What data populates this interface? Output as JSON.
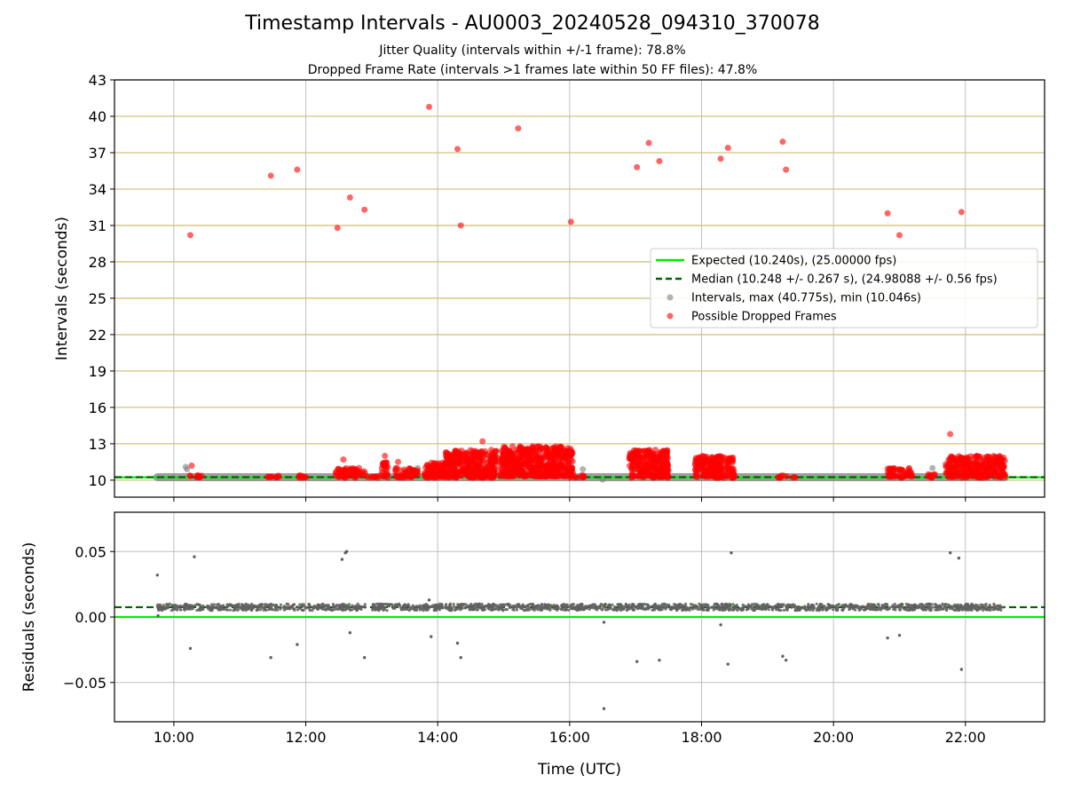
{
  "chart_data": [
    {
      "type": "scatter",
      "title": "Timestamp Intervals - AU0003_20240528_094310_370078",
      "subtitle_lines": [
        "Jitter Quality (intervals within +/-1 frame): 78.8%",
        "Dropped Frame Rate (intervals >1 frames late within 50 FF files): 47.8%"
      ],
      "xlabel": "",
      "ylabel": "Intervals (seconds)",
      "xlim": [
        9.1,
        23.2
      ],
      "ylim": [
        8.6,
        43
      ],
      "yticks": [
        10,
        13,
        16,
        19,
        22,
        25,
        28,
        31,
        34,
        37,
        40,
        43
      ],
      "xticks": [
        10,
        12,
        14,
        16,
        18,
        20,
        22
      ],
      "xtick_labels": [
        "10:00",
        "12:00",
        "14:00",
        "16:00",
        "18:00",
        "20:00",
        "22:00"
      ],
      "grid": true,
      "legend_position": "center-right",
      "reference_lines": [
        {
          "name": "Expected (10.240s), (25.00000 fps)",
          "y": 10.24,
          "style": "solid",
          "color": "#00ee00"
        },
        {
          "name": "Median (10.248 +/- 0.267 s), (24.98088 +/- 0.56 fps)",
          "y": 10.248,
          "style": "dashed",
          "color": "#006400"
        }
      ],
      "series": [
        {
          "name": "Intervals, max (40.775s), min (10.046s)",
          "color": "#808080",
          "baseline_segments": [
            [
              9.75,
              22.6
            ]
          ],
          "baseline_y": 10.248,
          "points": [
            [
              10.18,
              11.1
            ],
            [
              10.2,
              10.9
            ],
            [
              13.7,
              11.0
            ],
            [
              16.2,
              10.9
            ],
            [
              16.5,
              10.05
            ],
            [
              17.0,
              11.0
            ],
            [
              17.9,
              11.5
            ],
            [
              18.3,
              10.9
            ],
            [
              21.5,
              11.0
            ],
            [
              21.7,
              11.1
            ]
          ]
        },
        {
          "name": "Possible Dropped Frames",
          "color": "#ff0000",
          "points": [
            [
              10.25,
              30.2
            ],
            [
              11.47,
              35.1
            ],
            [
              11.87,
              35.6
            ],
            [
              12.48,
              30.8
            ],
            [
              12.67,
              33.3
            ],
            [
              12.89,
              32.3
            ],
            [
              13.87,
              40.78
            ],
            [
              14.3,
              37.3
            ],
            [
              14.35,
              31.0
            ],
            [
              15.22,
              39.0
            ],
            [
              16.02,
              31.3
            ],
            [
              17.02,
              35.8
            ],
            [
              17.2,
              37.8
            ],
            [
              17.36,
              36.3
            ],
            [
              18.29,
              36.5
            ],
            [
              18.4,
              37.4
            ],
            [
              19.23,
              37.9
            ],
            [
              19.28,
              35.6
            ],
            [
              20.82,
              32.0
            ],
            [
              21.0,
              30.2
            ],
            [
              21.94,
              32.1
            ],
            [
              21.77,
              13.8
            ],
            [
              14.68,
              13.2
            ],
            [
              12.57,
              11.7
            ],
            [
              13.2,
              12.0
            ],
            [
              13.4,
              11.5
            ],
            [
              10.27,
              11.2
            ]
          ],
          "clusters": [
            {
              "x": [
                10.2,
                10.45
              ],
              "y": [
                10.2,
                10.4
              ]
            },
            {
              "x": [
                11.4,
                11.6
              ],
              "y": [
                10.2,
                10.4
              ]
            },
            {
              "x": [
                11.8,
                12.05
              ],
              "y": [
                10.2,
                10.4
              ]
            },
            {
              "x": [
                12.45,
                12.9
              ],
              "y": [
                10.2,
                11.0
              ]
            },
            {
              "x": [
                12.9,
                13.15
              ],
              "y": [
                10.2,
                10.4
              ]
            },
            {
              "x": [
                13.15,
                13.25
              ],
              "y": [
                10.2,
                11.5
              ]
            },
            {
              "x": [
                13.35,
                13.7
              ],
              "y": [
                10.2,
                11.0
              ]
            },
            {
              "x": [
                13.8,
                14.1
              ],
              "y": [
                10.2,
                11.5
              ]
            },
            {
              "x": [
                14.1,
                14.9
              ],
              "y": [
                10.2,
                12.5
              ]
            },
            {
              "x": [
                14.95,
                16.05
              ],
              "y": [
                10.3,
                12.8
              ]
            },
            {
              "x": [
                16.0,
                16.25
              ],
              "y": [
                10.2,
                10.4
              ]
            },
            {
              "x": [
                16.9,
                17.5
              ],
              "y": [
                10.2,
                12.5
              ]
            },
            {
              "x": [
                17.9,
                18.5
              ],
              "y": [
                10.2,
                12.0
              ]
            },
            {
              "x": [
                19.15,
                19.45
              ],
              "y": [
                10.2,
                10.4
              ]
            },
            {
              "x": [
                20.8,
                21.2
              ],
              "y": [
                10.2,
                11.0
              ]
            },
            {
              "x": [
                21.4,
                21.6
              ],
              "y": [
                10.2,
                10.5
              ]
            },
            {
              "x": [
                21.7,
                22.6
              ],
              "y": [
                10.2,
                12.0
              ]
            }
          ]
        }
      ]
    },
    {
      "type": "scatter",
      "xlabel": "Time (UTC)",
      "ylabel": "Residuals (seconds)",
      "xlim": [
        9.1,
        23.2
      ],
      "ylim": [
        -0.08,
        0.08
      ],
      "yticks": [
        0.05,
        0.0,
        -0.05
      ],
      "ytick_labels": [
        "0.05",
        "0.00",
        "−0.05"
      ],
      "xticks": [
        10,
        12,
        14,
        16,
        18,
        20,
        22
      ],
      "xtick_labels": [
        "10:00",
        "12:00",
        "14:00",
        "16:00",
        "18:00",
        "20:00",
        "22:00"
      ],
      "grid": true,
      "reference_lines": [
        {
          "y": 0.0,
          "style": "solid",
          "color": "#00ee00"
        },
        {
          "y": 0.0075,
          "style": "dashed",
          "color": "#006400"
        }
      ],
      "series": [
        {
          "name": "Residuals",
          "color": "#606060",
          "band_segments": [
            [
              9.75,
              10.45
            ],
            [
              10.5,
              12.9
            ],
            [
              13.0,
              16.0
            ],
            [
              16.0,
              22.6
            ]
          ],
          "band_y": [
            0.005,
            0.01
          ],
          "points": [
            [
              9.75,
              0.032
            ],
            [
              9.76,
              0.001
            ],
            [
              10.25,
              -0.024
            ],
            [
              10.31,
              0.046
            ],
            [
              11.47,
              -0.031
            ],
            [
              11.87,
              -0.021
            ],
            [
              12.55,
              0.044
            ],
            [
              12.6,
              0.049
            ],
            [
              12.62,
              0.05
            ],
            [
              12.67,
              -0.012
            ],
            [
              12.89,
              -0.031
            ],
            [
              13.87,
              0.013
            ],
            [
              13.9,
              -0.015
            ],
            [
              14.3,
              -0.02
            ],
            [
              14.35,
              -0.031
            ],
            [
              16.52,
              -0.004
            ],
            [
              16.52,
              -0.07
            ],
            [
              17.02,
              -0.034
            ],
            [
              17.36,
              -0.033
            ],
            [
              18.29,
              -0.006
            ],
            [
              18.4,
              -0.036
            ],
            [
              18.45,
              0.049
            ],
            [
              19.23,
              -0.03
            ],
            [
              19.28,
              -0.033
            ],
            [
              20.82,
              -0.016
            ],
            [
              21.0,
              -0.014
            ],
            [
              21.77,
              0.049
            ],
            [
              21.9,
              0.045
            ],
            [
              21.94,
              -0.04
            ]
          ]
        }
      ]
    }
  ]
}
